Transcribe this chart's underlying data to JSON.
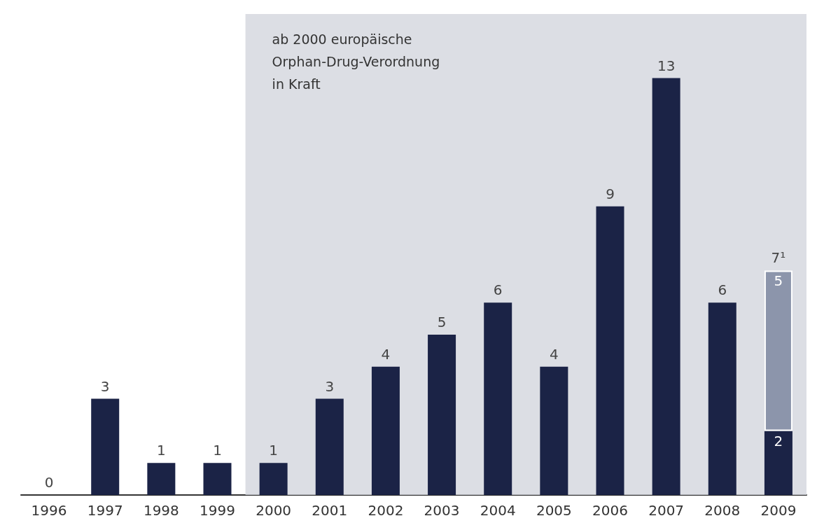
{
  "chart_data": {
    "type": "bar",
    "stacked": true,
    "categories": [
      "1996",
      "1997",
      "1998",
      "1999",
      "2000",
      "2001",
      "2002",
      "2003",
      "2004",
      "2005",
      "2006",
      "2007",
      "2008",
      "2009"
    ],
    "series": [
      {
        "color": "#1b2346",
        "values": [
          0,
          3,
          1,
          1,
          1,
          3,
          4,
          5,
          6,
          4,
          9,
          13,
          6,
          2
        ],
        "value_labels": [
          null,
          null,
          null,
          null,
          null,
          null,
          null,
          null,
          null,
          null,
          null,
          null,
          null,
          "2"
        ]
      },
      {
        "color": "#8c95ab",
        "values": [
          null,
          null,
          null,
          null,
          null,
          null,
          null,
          null,
          null,
          null,
          null,
          null,
          null,
          5
        ],
        "value_labels": [
          null,
          null,
          null,
          null,
          null,
          null,
          null,
          null,
          null,
          null,
          null,
          null,
          null,
          "5"
        ]
      }
    ],
    "totals": [
      "0",
      "3",
      "1",
      "1",
      "1",
      "3",
      "4",
      "5",
      "6",
      "4",
      "9",
      "13",
      "6",
      "7¹"
    ],
    "bands": [
      {
        "axis": "x",
        "from": "2000",
        "to": "2009",
        "label": "ab 2000 europäische\nOrphan-Drug-Verordnung\nin Kraft",
        "color": "#d3d6dd"
      }
    ],
    "grid": false
  }
}
